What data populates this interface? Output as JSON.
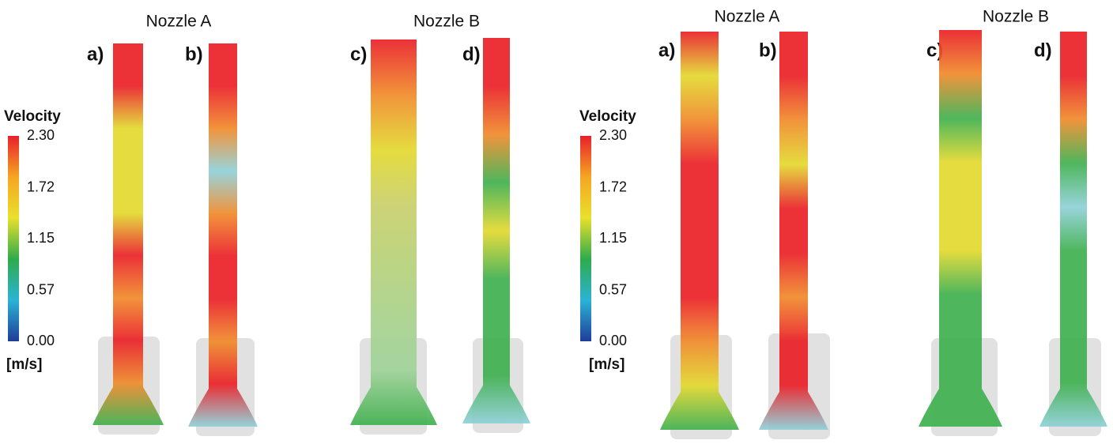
{
  "panels": [
    {
      "groups": [
        {
          "title": "Nozzle A",
          "labels": [
            "a)",
            "b)"
          ]
        },
        {
          "title": "Nozzle B",
          "labels": [
            "c)",
            "d)"
          ]
        }
      ],
      "colorbar": {
        "title": "Velocity",
        "unit": "[m/s]",
        "range": [
          0,
          2.3
        ],
        "ticks": [
          {
            "value": 2.3,
            "label": "2.30"
          },
          {
            "value": 1.72,
            "label": "1.72"
          },
          {
            "value": 1.15,
            "label": "1.15"
          },
          {
            "value": 0.57,
            "label": "0.57"
          },
          {
            "value": 0,
            "label": "0.00"
          }
        ]
      }
    },
    {
      "groups": [
        {
          "title": "Nozzle A",
          "labels": [
            "a)",
            "b)"
          ]
        },
        {
          "title": "Nozzle B",
          "labels": [
            "c)",
            "d)"
          ]
        }
      ],
      "colorbar": {
        "title": "Velocity",
        "unit": "[m/s]",
        "range": [
          0,
          2.3
        ],
        "ticks": [
          {
            "value": 2.3,
            "label": "2.30"
          },
          {
            "value": 1.72,
            "label": "1.72"
          },
          {
            "value": 1.15,
            "label": "1.15"
          },
          {
            "value": 0.57,
            "label": "0.57"
          },
          {
            "value": 0,
            "label": "0.00"
          }
        ]
      }
    }
  ],
  "colormap": [
    "#e8202a",
    "#f5a623",
    "#e9e02c",
    "#2eab4b",
    "#2bb3d6",
    "#1f3d98"
  ]
}
